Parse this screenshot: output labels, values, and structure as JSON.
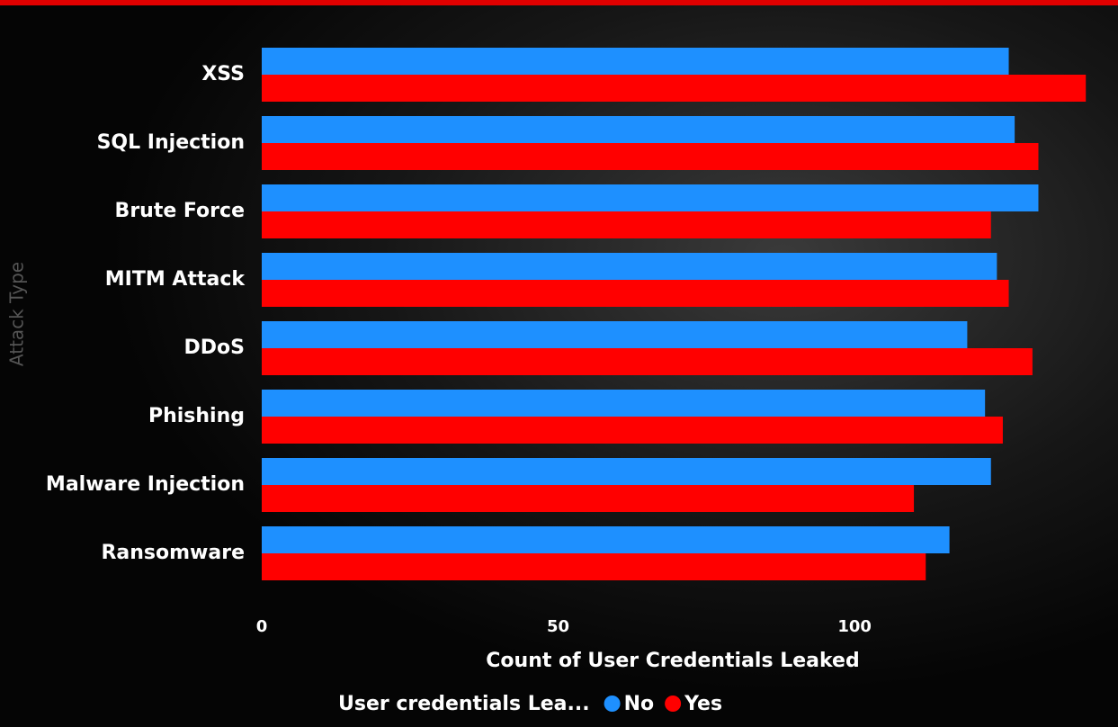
{
  "chart_data": {
    "type": "barh",
    "x_label": "Count of User Credentials Leaked",
    "y_label": "Attack Type",
    "legend_title": "User credentials Lea...",
    "categories": [
      "XSS",
      "SQL Injection",
      "Brute Force",
      "MITM Attack",
      "DDoS",
      "Phishing",
      "Malware Injection",
      "Ransomware"
    ],
    "series": [
      {
        "name": "No",
        "color": "#1e90ff",
        "values": [
          126,
          127,
          131,
          124,
          119,
          122,
          123,
          116
        ]
      },
      {
        "name": "Yes",
        "color": "#ff0000",
        "values": [
          139,
          131,
          123,
          126,
          130,
          125,
          110,
          112
        ]
      }
    ],
    "xlim": [
      0,
      142
    ],
    "xticks": [
      0,
      50,
      100
    ]
  }
}
